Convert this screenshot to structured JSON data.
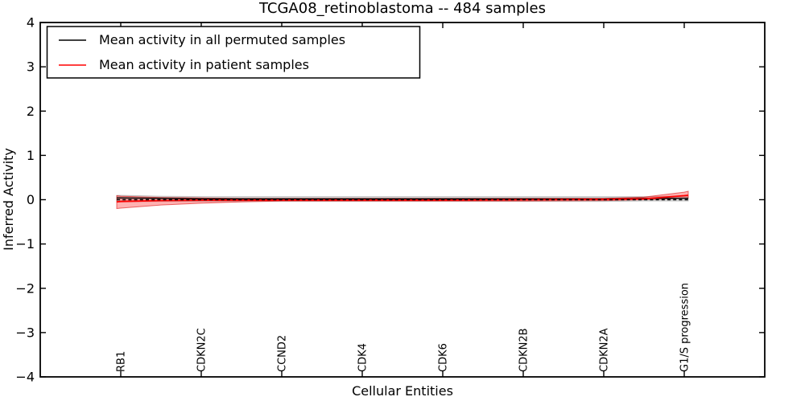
{
  "page": {
    "background": "#ffffff",
    "frame_color": "#000000"
  },
  "chart_data": {
    "type": "line",
    "title": "TCGA08_retinoblastoma -- 484 samples",
    "xlabel": "Cellular Entities",
    "ylabel": "Inferred Activity",
    "xlim": [
      0,
      9
    ],
    "ylim": [
      -4,
      4
    ],
    "grid": false,
    "ytick_values": [
      4,
      3,
      2,
      1,
      0,
      -1,
      -2,
      -3,
      -4
    ],
    "ytick_labels": [
      "4",
      "3",
      "2",
      "1",
      "0",
      "−1",
      "−2",
      "−3",
      "−4"
    ],
    "categories": [
      "RB1",
      "CDKN2C",
      "CCND2",
      "CDK4",
      "CDK6",
      "CDKN2B",
      "CDKN2A",
      "G1/S progression"
    ],
    "category_x": [
      1,
      2,
      3,
      4,
      5,
      6,
      7,
      8
    ],
    "legend": {
      "position": "upper-left",
      "entries": [
        {
          "label": "Mean activity in all permuted samples",
          "color": "#000000"
        },
        {
          "label": "Mean activity in patient samples",
          "color": "#ff0000"
        }
      ]
    },
    "x": [
      0.95,
      1,
      1.5,
      2,
      2.5,
      3,
      4,
      5,
      6,
      7,
      7.5,
      8,
      8.05
    ],
    "series": [
      {
        "name": "Mean activity in all permuted samples",
        "color": "#000000",
        "style": "solid",
        "width": 1.4,
        "values": [
          0.04,
          0.04,
          0.03,
          0.02,
          0.02,
          0.02,
          0.02,
          0.02,
          0.02,
          0.02,
          0.03,
          0.03,
          0.03
        ]
      },
      {
        "name": "Mean activity in patient samples",
        "color": "#ff0000",
        "style": "solid",
        "width": 1.8,
        "values": [
          -0.05,
          -0.04,
          -0.02,
          -0.01,
          -0.01,
          -0.01,
          -0.01,
          -0.01,
          0.0,
          0.01,
          0.02,
          0.09,
          0.1
        ]
      },
      {
        "name": "zero-reference",
        "color": "#000000",
        "style": "dashed",
        "width": 1.6,
        "values": [
          0,
          0,
          0,
          0,
          0,
          0,
          0,
          0,
          0,
          0,
          0,
          0,
          0
        ]
      }
    ],
    "bands": [
      {
        "name": "permuted-confidence-band",
        "fill": "rgba(0,0,0,0.15)",
        "edge": "rgba(0,0,0,0.18)",
        "upper": [
          0.1,
          0.1,
          0.08,
          0.07,
          0.07,
          0.07,
          0.07,
          0.07,
          0.07,
          0.07,
          0.07,
          0.08,
          0.08
        ],
        "lower": [
          -0.05,
          -0.05,
          -0.04,
          -0.04,
          -0.04,
          -0.04,
          -0.04,
          -0.04,
          -0.04,
          -0.04,
          -0.03,
          -0.03,
          -0.03
        ]
      },
      {
        "name": "patient-confidence-band",
        "fill": "rgba(255,0,0,0.30)",
        "edge": "rgba(220,0,0,0.55)",
        "upper": [
          0.09,
          0.08,
          0.05,
          0.04,
          0.03,
          0.03,
          0.03,
          0.03,
          0.03,
          0.03,
          0.06,
          0.17,
          0.19
        ],
        "lower": [
          -0.2,
          -0.19,
          -0.12,
          -0.08,
          -0.05,
          -0.03,
          -0.03,
          -0.03,
          -0.03,
          -0.02,
          0.0,
          0.03,
          0.04
        ]
      }
    ]
  }
}
